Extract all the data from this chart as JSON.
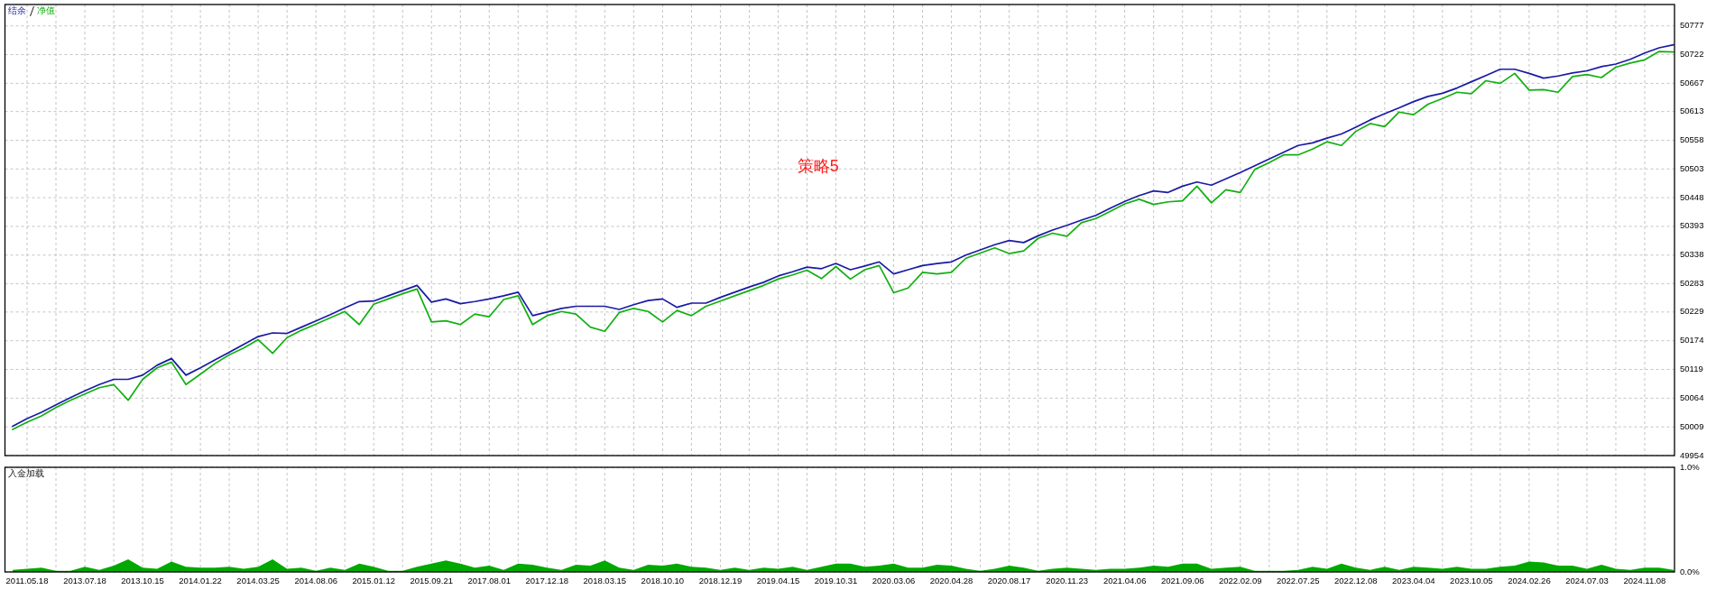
{
  "chart_data": [
    {
      "type": "line",
      "title": "策略5",
      "categories": [
        null,
        "2011.05.18",
        null,
        null,
        null,
        "2013.07.18",
        null,
        null,
        null,
        "2013.10.15",
        null,
        null,
        null,
        "2014.01.22",
        null,
        null,
        null,
        "2014.03.25",
        null,
        null,
        null,
        "2014.08.06",
        null,
        null,
        null,
        "2015.01.12",
        null,
        null,
        null,
        "2015.09.21",
        null,
        null,
        null,
        "2017.08.01",
        null,
        null,
        null,
        "2017.12.18",
        null,
        null,
        null,
        "2018.03.15",
        null,
        null,
        null,
        "2018.10.10",
        null,
        null,
        null,
        "2018.12.19",
        null,
        null,
        null,
        "2019.04.15",
        null,
        null,
        null,
        "2019.10.31",
        null,
        null,
        null,
        "2020.03.06",
        null,
        null,
        null,
        "2020.04.28",
        null,
        null,
        null,
        "2020.08.17",
        null,
        null,
        null,
        "2020.11.23",
        null,
        null,
        null,
        "2021.04.06",
        null,
        null,
        null,
        "2021.09.06",
        null,
        null,
        null,
        "2022.02.09",
        null,
        null,
        null,
        "2022.07.25",
        null,
        null,
        null,
        "2022.12.08",
        null,
        null,
        null,
        "2023.04.04",
        null,
        null,
        null,
        "2023.10.05",
        null,
        null,
        null,
        "2024.02.26",
        null,
        null,
        null,
        "2024.07.03",
        null,
        null,
        null,
        "2024.11.08",
        null,
        null
      ],
      "series": [
        {
          "name": "结余",
          "color": "#1a1aa6",
          "values": [
            50010,
            50025,
            50037,
            50051,
            50065,
            50078,
            50090,
            50100,
            50100,
            50108,
            50127,
            50140,
            50108,
            50122,
            50137,
            50152,
            50167,
            50182,
            50189,
            50188,
            50200,
            50212,
            50224,
            50237,
            50249,
            50250,
            50260,
            50270,
            50280,
            50248,
            50254,
            50245,
            50249,
            50254,
            50260,
            50267,
            50222,
            50229,
            50236,
            50240,
            50240,
            50240,
            50234,
            50243,
            50251,
            50254,
            50238,
            50246,
            50246,
            50257,
            50267,
            50277,
            50286,
            50298,
            50306,
            50315,
            50312,
            50322,
            50310,
            50317,
            50325,
            50302,
            50310,
            50318,
            50322,
            50325,
            50338,
            50348,
            50358,
            50366,
            50362,
            50375,
            50386,
            50395,
            50405,
            50414,
            50428,
            50441,
            50452,
            50461,
            50458,
            50470,
            50478,
            50472,
            50484,
            50496,
            50509,
            50522,
            50535,
            50548,
            50553,
            50562,
            50570,
            50583,
            50597,
            50609,
            50620,
            50632,
            50642,
            50648,
            50658,
            50670,
            50682,
            50694,
            50694,
            50686,
            50677,
            50681,
            50687,
            50691,
            50699,
            50704,
            50713,
            50725,
            50735,
            50741
          ]
        },
        {
          "name": "净值",
          "color": "#10b010",
          "values": [
            50004,
            50018,
            50030,
            50046,
            50060,
            50072,
            50084,
            50090,
            50060,
            50100,
            50122,
            50133,
            50090,
            50110,
            50130,
            50147,
            50160,
            50176,
            50150,
            50180,
            50194,
            50206,
            50218,
            50230,
            50205,
            50244,
            50254,
            50264,
            50273,
            50210,
            50212,
            50205,
            50225,
            50220,
            50253,
            50260,
            50205,
            50222,
            50230,
            50225,
            50200,
            50192,
            50228,
            50236,
            50230,
            50210,
            50232,
            50222,
            50240,
            50250,
            50260,
            50270,
            50280,
            50292,
            50300,
            50309,
            50293,
            50316,
            50292,
            50310,
            50318,
            50266,
            50275,
            50305,
            50302,
            50305,
            50332,
            50342,
            50352,
            50341,
            50346,
            50370,
            50380,
            50374,
            50400,
            50408,
            50422,
            50436,
            50445,
            50435,
            50440,
            50442,
            50470,
            50438,
            50463,
            50458,
            50502,
            50515,
            50530,
            50530,
            50541,
            50555,
            50548,
            50575,
            50590,
            50584,
            50612,
            50607,
            50627,
            50638,
            50650,
            50647,
            50672,
            50667,
            50686,
            50654,
            50655,
            50650,
            50680,
            50684,
            50678,
            50698,
            50706,
            50712,
            50728,
            50727
          ]
        }
      ],
      "ylim": [
        49954,
        50818
      ],
      "yticks": [
        49954,
        50009,
        50064,
        50119,
        50174,
        50229,
        50283,
        50338,
        50393,
        50448,
        50503,
        50558,
        50613,
        50667,
        50722,
        50777
      ],
      "grid": true,
      "legend": "top left",
      "tick_labels": "y"
    },
    {
      "type": "area",
      "title": "入金加载",
      "categories": [
        null,
        "2011.05.18",
        null,
        null,
        null,
        "2013.07.18",
        null,
        null,
        null,
        "2013.10.15",
        null,
        null,
        null,
        "2014.01.22",
        null,
        null,
        null,
        "2014.03.25",
        null,
        null,
        null,
        "2014.08.06",
        null,
        null,
        null,
        "2015.01.12",
        null,
        null,
        null,
        "2015.09.21",
        null,
        null,
        null,
        "2017.08.01",
        null,
        null,
        null,
        "2017.12.18",
        null,
        null,
        null,
        "2018.03.15",
        null,
        null,
        null,
        "2018.10.10",
        null,
        null,
        null,
        "2018.12.19",
        null,
        null,
        null,
        "2019.04.15",
        null,
        null,
        null,
        "2019.10.31",
        null,
        null,
        null,
        "2020.03.06",
        null,
        null,
        null,
        "2020.04.28",
        null,
        null,
        null,
        "2020.08.17",
        null,
        null,
        null,
        "2020.11.23",
        null,
        null,
        null,
        "2021.04.06",
        null,
        null,
        null,
        "2021.09.06",
        null,
        null,
        null,
        "2022.02.09",
        null,
        null,
        null,
        "2022.07.25",
        null,
        null,
        null,
        "2022.12.08",
        null,
        null,
        null,
        "2023.04.04",
        null,
        null,
        null,
        "2023.10.05",
        null,
        null,
        null,
        "2024.02.26",
        null,
        null,
        null,
        "2024.07.03",
        null,
        null,
        null,
        "2024.11.08",
        null,
        null
      ],
      "color": "#00a800",
      "values": [
        0.02,
        0.03,
        0.04,
        0.01,
        0.01,
        0.05,
        0.02,
        0.06,
        0.12,
        0.04,
        0.03,
        0.1,
        0.05,
        0.04,
        0.04,
        0.05,
        0.03,
        0.05,
        0.12,
        0.03,
        0.04,
        0.01,
        0.04,
        0.02,
        0.08,
        0.05,
        0.01,
        0.01,
        0.05,
        0.08,
        0.11,
        0.08,
        0.04,
        0.06,
        0.02,
        0.08,
        0.07,
        0.04,
        0.02,
        0.07,
        0.06,
        0.11,
        0.04,
        0.02,
        0.07,
        0.06,
        0.08,
        0.05,
        0.04,
        0.02,
        0.04,
        0.02,
        0.04,
        0.03,
        0.05,
        0.02,
        0.05,
        0.08,
        0.08,
        0.05,
        0.06,
        0.08,
        0.04,
        0.04,
        0.07,
        0.06,
        0.03,
        0.01,
        0.03,
        0.06,
        0.04,
        0.01,
        0.03,
        0.04,
        0.03,
        0.02,
        0.03,
        0.03,
        0.04,
        0.06,
        0.05,
        0.08,
        0.08,
        0.03,
        0.04,
        0.05,
        0.01,
        0.01,
        0.01,
        0.02,
        0.05,
        0.03,
        0.08,
        0.04,
        0.02,
        0.05,
        0.02,
        0.05,
        0.04,
        0.03,
        0.05,
        0.03,
        0.03,
        0.05,
        0.06,
        0.1,
        0.09,
        0.06,
        0.06,
        0.03,
        0.07,
        0.03,
        0.02,
        0.04,
        0.04,
        0.02
      ],
      "ylim": [
        0,
        1
      ],
      "yticks": [
        {
          "value": 1,
          "label": "1.0%"
        },
        {
          "value": 0,
          "label": "0.0%"
        }
      ],
      "grid": true
    }
  ]
}
